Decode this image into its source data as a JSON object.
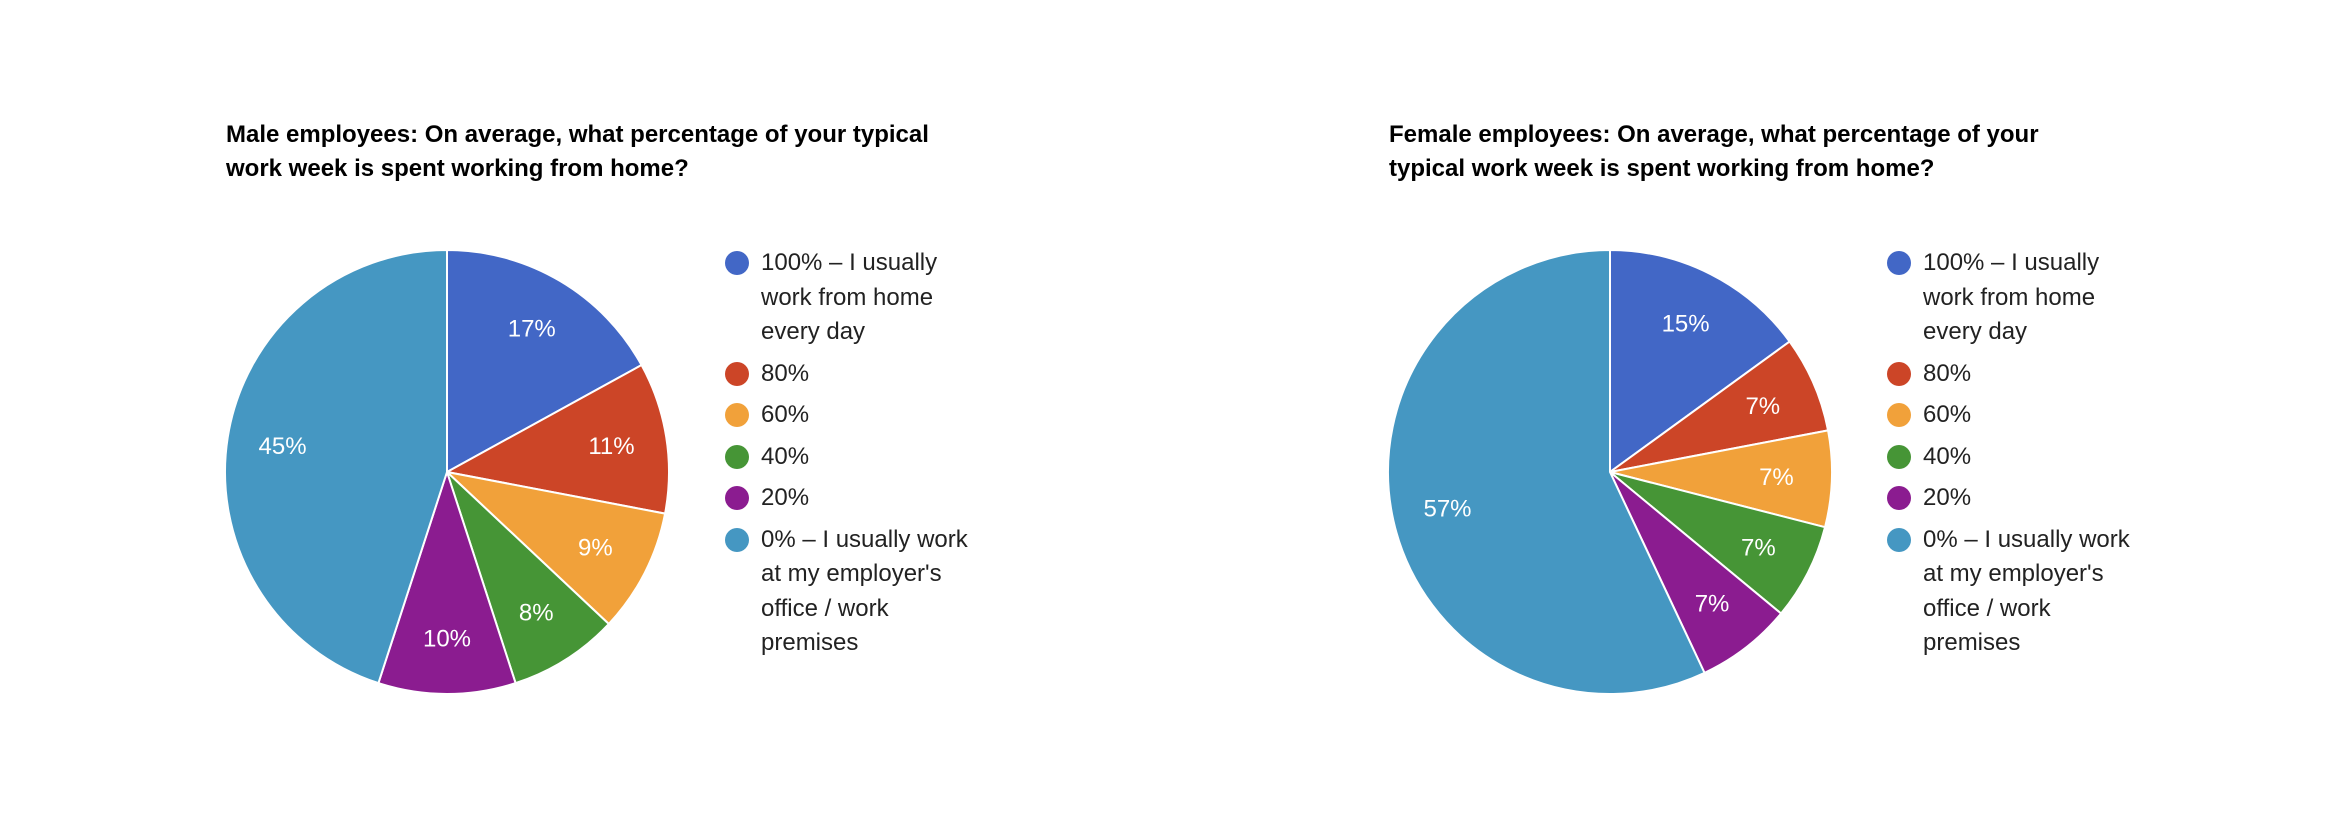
{
  "chart_data": [
    {
      "type": "pie",
      "title": "Male employees: On average, what percentage of your typical work week is spent working from home?",
      "categories": [
        "100% – I usually work from home every day",
        "80%",
        "60%",
        "40%",
        "20%",
        "0% – I usually work at my employer's office / work premises"
      ],
      "values": [
        17,
        11,
        9,
        8,
        10,
        45
      ],
      "data_labels": [
        "17%",
        "11%",
        "9%",
        "8%",
        "10%",
        "45%"
      ],
      "colors": [
        "#4267c6",
        "#cc4527",
        "#f1a13a",
        "#469536",
        "#8b1c90",
        "#4597c2"
      ],
      "legend": "right"
    },
    {
      "type": "pie",
      "title": "Female employees: On average, what percentage of your typical work week is spent working from home?",
      "categories": [
        "100% – I usually work from home every day",
        "80%",
        "60%",
        "40%",
        "20%",
        "0% – I usually work at my employer's office / work premises"
      ],
      "values": [
        15,
        7,
        7,
        7,
        7,
        57
      ],
      "data_labels": [
        "15%",
        "7%",
        "7%",
        "7%",
        "7%",
        "57%"
      ],
      "colors": [
        "#4267c6",
        "#cc4527",
        "#f1a13a",
        "#469536",
        "#8b1c90",
        "#4597c2"
      ],
      "legend": "right"
    }
  ]
}
